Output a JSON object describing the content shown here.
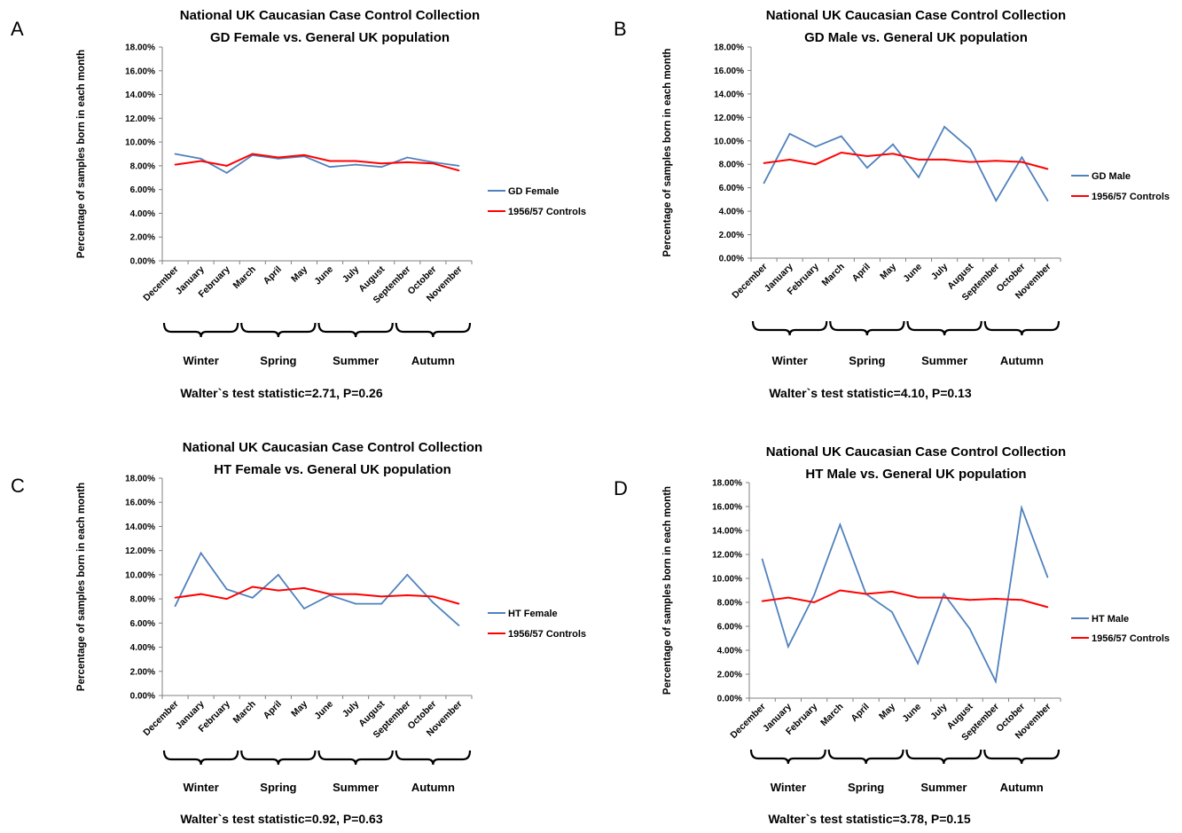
{
  "colors": {
    "case_series": "#4f81bd",
    "control_series": "#ff0000",
    "axis": "#808080"
  },
  "months": [
    "December",
    "January",
    "February",
    "March",
    "April",
    "May",
    "June",
    "July",
    "August",
    "September",
    "October",
    "November"
  ],
  "seasons": [
    "Winter",
    "Spring",
    "Summer",
    "Autumn"
  ],
  "ylabel": "Percentage of samples born in each month",
  "ytick_labels": [
    "0.00%",
    "2.00%",
    "4.00%",
    "6.00%",
    "8.00%",
    "10.00%",
    "12.00%",
    "14.00%",
    "16.00%",
    "18.00%"
  ],
  "chart_data": [
    {
      "type": "line",
      "panel": "A",
      "title": [
        "National UK Caucasian Case Control Collection",
        "GD Female vs. General UK population"
      ],
      "ylabel": "Percentage of samples born in each month",
      "ylim": [
        0,
        18
      ],
      "categories": [
        "December",
        "January",
        "February",
        "March",
        "April",
        "May",
        "June",
        "July",
        "August",
        "September",
        "October",
        "November"
      ],
      "series": [
        {
          "name": "GD Female",
          "values": [
            9.0,
            8.6,
            7.4,
            8.9,
            8.6,
            8.8,
            7.9,
            8.1,
            7.9,
            8.7,
            8.3,
            8.0
          ]
        },
        {
          "name": "1956/57 Controls",
          "values": [
            8.1,
            8.4,
            8.0,
            9.0,
            8.7,
            8.9,
            8.4,
            8.4,
            8.2,
            8.3,
            8.2,
            7.6
          ]
        }
      ],
      "season_labels": [
        "Winter",
        "Spring",
        "Summer",
        "Autumn"
      ],
      "statistic": "Walter`s test statistic=2.71, P=0.26"
    },
    {
      "type": "line",
      "panel": "B",
      "title": [
        "National UK Caucasian Case Control Collection",
        "GD Male vs. General UK population"
      ],
      "ylabel": "Percentage of samples born in each month",
      "ylim": [
        0,
        18
      ],
      "categories": [
        "December",
        "January",
        "February",
        "March",
        "April",
        "May",
        "June",
        "July",
        "August",
        "September",
        "October",
        "November"
      ],
      "series": [
        {
          "name": "GD Male",
          "values": [
            6.4,
            10.6,
            9.5,
            10.4,
            7.7,
            9.7,
            6.9,
            11.2,
            9.3,
            4.9,
            8.6,
            4.9
          ]
        },
        {
          "name": "1956/57 Controls",
          "values": [
            8.1,
            8.4,
            8.0,
            9.0,
            8.7,
            8.9,
            8.4,
            8.4,
            8.2,
            8.3,
            8.2,
            7.6
          ]
        }
      ],
      "season_labels": [
        "Winter",
        "Spring",
        "Summer",
        "Autumn"
      ],
      "statistic": "Walter`s test statistic=4.10, P=0.13"
    },
    {
      "type": "line",
      "panel": "C",
      "title": [
        "National UK Caucasian Case Control Collection",
        "HT Female vs. General UK population"
      ],
      "ylabel": "Percentage of samples born in each month",
      "ylim": [
        0,
        18
      ],
      "categories": [
        "December",
        "January",
        "February",
        "March",
        "April",
        "May",
        "June",
        "July",
        "August",
        "September",
        "October",
        "November"
      ],
      "series": [
        {
          "name": "HT Female",
          "values": [
            7.4,
            11.8,
            8.8,
            8.1,
            10.0,
            7.2,
            8.3,
            7.6,
            7.6,
            10.0,
            7.7,
            5.8
          ]
        },
        {
          "name": "1956/57 Controls",
          "values": [
            8.1,
            8.4,
            8.0,
            9.0,
            8.7,
            8.9,
            8.4,
            8.4,
            8.2,
            8.3,
            8.2,
            7.6
          ]
        }
      ],
      "season_labels": [
        "Winter",
        "Spring",
        "Summer",
        "Autumn"
      ],
      "statistic": "Walter`s test statistic=0.92, P=0.63"
    },
    {
      "type": "line",
      "panel": "D",
      "title": [
        "National UK Caucasian Case Control Collection",
        "HT Male vs. General UK population"
      ],
      "ylabel": "Percentage of samples born in each month",
      "ylim": [
        0,
        18
      ],
      "categories": [
        "December",
        "January",
        "February",
        "March",
        "April",
        "May",
        "June",
        "July",
        "August",
        "September",
        "October",
        "November"
      ],
      "series": [
        {
          "name": "HT Male",
          "values": [
            11.6,
            4.3,
            8.6,
            14.5,
            8.7,
            7.2,
            2.9,
            8.7,
            5.8,
            1.4,
            15.9,
            10.1
          ]
        },
        {
          "name": "1956/57 Controls",
          "values": [
            8.1,
            8.4,
            8.0,
            9.0,
            8.7,
            8.9,
            8.4,
            8.4,
            8.2,
            8.3,
            8.2,
            7.6
          ]
        }
      ],
      "season_labels": [
        "Winter",
        "Spring",
        "Summer",
        "Autumn"
      ],
      "statistic": "Walter`s test statistic=3.78, P=0.15"
    }
  ]
}
